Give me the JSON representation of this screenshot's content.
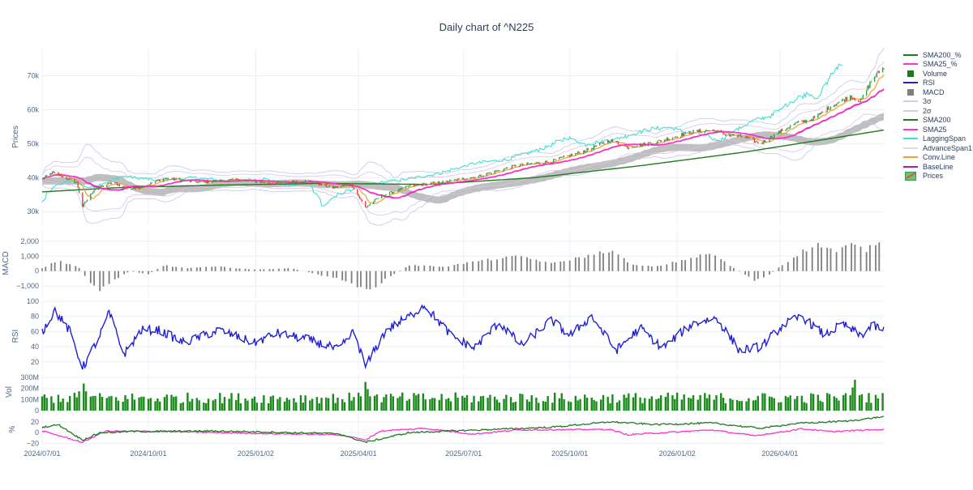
{
  "title": "Daily chart of ^N225",
  "legend": [
    {
      "label": "SMA200_%",
      "color": "#1e7b1e",
      "kind": "line"
    },
    {
      "label": "SMA25_%",
      "color": "#ff33cc",
      "kind": "line"
    },
    {
      "label": "Volume",
      "color": "#1a7d1a",
      "kind": "box"
    },
    {
      "label": "RSI",
      "color": "#1f1fd6",
      "kind": "line"
    },
    {
      "label": "MACD",
      "color": "#7f7f7f",
      "kind": "box"
    },
    {
      "label": "3σ",
      "color": "#c8d2ee",
      "kind": "line"
    },
    {
      "label": "2σ",
      "color": "#c8d2ee",
      "kind": "line"
    },
    {
      "label": "SMA200",
      "color": "#1e7b1e",
      "kind": "line"
    },
    {
      "label": "SMA25",
      "color": "#ff33cc",
      "kind": "line"
    },
    {
      "label": "LaggingSpan",
      "color": "#40e0d0",
      "kind": "line"
    },
    {
      "label": "AdvanceSpan1",
      "color": "#dddddd",
      "kind": "line"
    },
    {
      "label": "Conv.Line",
      "color": "#f0a030",
      "kind": "line"
    },
    {
      "label": "BaseLine",
      "color": "#a020c0",
      "kind": "line"
    },
    {
      "label": "Prices",
      "color": "#e05050",
      "kind": "candle"
    }
  ],
  "chart_data": {
    "type": "line",
    "title": "Daily chart of ^N225",
    "x_ticks": [
      "2024/07/01",
      "2024/10/01",
      "2025/01/02",
      "2025/04/01",
      "2025/07/01",
      "2025/10/01",
      "2026/01/02",
      "2026/04/01"
    ],
    "x_tick_dates": [
      "2024-07-01",
      "2024-10-01",
      "2025-01-02",
      "2025-04-01",
      "2025-07-01",
      "2025-10-01",
      "2026-01-02",
      "2026-04-01"
    ],
    "x_range": [
      "2024-07-01",
      "2026-06-30"
    ],
    "panels": [
      {
        "name": "prices",
        "ylabel": "Prices",
        "ylim": [
          26000,
          78000
        ],
        "ytick_values": [
          30000,
          40000,
          50000,
          60000,
          70000
        ],
        "ytick_labels": [
          "30k",
          "40k",
          "50k",
          "60k",
          "70k"
        ],
        "close_anchors": [
          [
            "2024-07-01",
            39600
          ],
          [
            "2024-07-10",
            41500
          ],
          [
            "2024-07-20",
            40000
          ],
          [
            "2024-07-31",
            38600
          ],
          [
            "2024-08-05",
            31500
          ],
          [
            "2024-08-15",
            36500
          ],
          [
            "2024-08-31",
            38600
          ],
          [
            "2024-09-15",
            36500
          ],
          [
            "2024-10-01",
            38000
          ],
          [
            "2024-10-15",
            39800
          ],
          [
            "2024-11-15",
            38600
          ],
          [
            "2024-12-15",
            39400
          ],
          [
            "2025-01-15",
            38400
          ],
          [
            "2025-02-15",
            39100
          ],
          [
            "2025-03-10",
            37000
          ],
          [
            "2025-03-26",
            38000
          ],
          [
            "2025-04-07",
            31200
          ],
          [
            "2025-04-20",
            34500
          ],
          [
            "2025-05-15",
            37500
          ],
          [
            "2025-06-15",
            38800
          ],
          [
            "2025-07-15",
            40500
          ],
          [
            "2025-08-15",
            43500
          ],
          [
            "2025-09-15",
            44800
          ],
          [
            "2025-10-15",
            48000
          ],
          [
            "2025-11-05",
            51000
          ],
          [
            "2025-11-20",
            49000
          ],
          [
            "2025-12-15",
            50500
          ],
          [
            "2026-01-15",
            53500
          ],
          [
            "2026-02-01",
            54000
          ],
          [
            "2026-02-15",
            52500
          ],
          [
            "2026-03-01",
            52000
          ],
          [
            "2026-03-15",
            50000
          ],
          [
            "2026-04-01",
            53500
          ],
          [
            "2026-04-15",
            56000
          ],
          [
            "2026-05-01",
            57500
          ],
          [
            "2026-05-15",
            61000
          ],
          [
            "2026-06-01",
            64000
          ],
          [
            "2026-06-10",
            62500
          ],
          [
            "2026-06-20",
            69000
          ],
          [
            "2026-06-27",
            71500
          ],
          [
            "2026-06-30",
            72500
          ]
        ],
        "sma200_anchors": [
          [
            "2024-07-01",
            35800
          ],
          [
            "2024-09-01",
            37000
          ],
          [
            "2024-12-01",
            37800
          ],
          [
            "2025-03-01",
            38300
          ],
          [
            "2025-06-01",
            38000
          ],
          [
            "2025-09-01",
            40000
          ],
          [
            "2025-12-01",
            43500
          ],
          [
            "2026-03-01",
            47500
          ],
          [
            "2026-06-30",
            54000
          ]
        ],
        "series": [
          {
            "name": "Prices"
          },
          {
            "name": "SMA25"
          },
          {
            "name": "SMA200"
          },
          {
            "name": "LaggingSpan"
          },
          {
            "name": "Conv.Line"
          },
          {
            "name": "BaseLine"
          },
          {
            "name": "AdvanceSpan1"
          },
          {
            "name": "2σ"
          },
          {
            "name": "3σ"
          }
        ]
      },
      {
        "name": "macd",
        "ylabel": "MACD",
        "ylim": [
          -1800,
          2800
        ],
        "ytick_values": [
          -1000,
          0,
          1000,
          2000
        ],
        "ytick_labels": [
          "−1,000",
          "0",
          "1,000",
          "2,000"
        ],
        "anchors": [
          [
            "2024-07-01",
            200
          ],
          [
            "2024-07-15",
            700
          ],
          [
            "2024-08-01",
            300
          ],
          [
            "2024-08-10",
            -600
          ],
          [
            "2024-08-20",
            -1300
          ],
          [
            "2024-09-01",
            -600
          ],
          [
            "2024-09-15",
            0
          ],
          [
            "2024-10-01",
            -200
          ],
          [
            "2024-10-15",
            400
          ],
          [
            "2024-11-01",
            200
          ],
          [
            "2024-12-01",
            300
          ],
          [
            "2025-01-01",
            100
          ],
          [
            "2025-02-01",
            200
          ],
          [
            "2025-03-01",
            -300
          ],
          [
            "2025-03-20",
            -600
          ],
          [
            "2025-04-10",
            -1400
          ],
          [
            "2025-04-25",
            -500
          ],
          [
            "2025-05-15",
            400
          ],
          [
            "2025-06-15",
            300
          ],
          [
            "2025-07-15",
            700
          ],
          [
            "2025-08-20",
            1000
          ],
          [
            "2025-09-15",
            500
          ],
          [
            "2025-10-15",
            1000
          ],
          [
            "2025-11-05",
            1400
          ],
          [
            "2025-11-25",
            400
          ],
          [
            "2025-12-15",
            300
          ],
          [
            "2026-01-15",
            900
          ],
          [
            "2026-02-01",
            1200
          ],
          [
            "2026-02-20",
            200
          ],
          [
            "2026-03-10",
            -600
          ],
          [
            "2026-03-20",
            -400
          ],
          [
            "2026-04-01",
            300
          ],
          [
            "2026-04-20",
            1300
          ],
          [
            "2026-05-05",
            1800
          ],
          [
            "2026-05-20",
            1300
          ],
          [
            "2026-06-01",
            1800
          ],
          [
            "2026-06-15",
            1400
          ],
          [
            "2026-06-30",
            2300
          ]
        ]
      },
      {
        "name": "rsi",
        "ylabel": "RSI",
        "ylim": [
          8,
          100
        ],
        "ytick_values": [
          20,
          40,
          60,
          80,
          100
        ],
        "ytick_labels": [
          "20",
          "40",
          "60",
          "80",
          "100"
        ],
        "anchors": [
          [
            "2024-07-01",
            60
          ],
          [
            "2024-07-12",
            88
          ],
          [
            "2024-07-25",
            60
          ],
          [
            "2024-08-05",
            12
          ],
          [
            "2024-08-20",
            55
          ],
          [
            "2024-08-28",
            85
          ],
          [
            "2024-09-10",
            30
          ],
          [
            "2024-09-25",
            62
          ],
          [
            "2024-10-10",
            62
          ],
          [
            "2024-11-01",
            45
          ],
          [
            "2024-12-01",
            62
          ],
          [
            "2025-01-01",
            45
          ],
          [
            "2025-01-20",
            58
          ],
          [
            "2025-02-15",
            50
          ],
          [
            "2025-03-15",
            36
          ],
          [
            "2025-03-28",
            60
          ],
          [
            "2025-04-07",
            14
          ],
          [
            "2025-04-25",
            62
          ],
          [
            "2025-05-15",
            80
          ],
          [
            "2025-05-28",
            95
          ],
          [
            "2025-06-20",
            55
          ],
          [
            "2025-07-10",
            38
          ],
          [
            "2025-08-01",
            72
          ],
          [
            "2025-08-20",
            42
          ],
          [
            "2025-09-15",
            75
          ],
          [
            "2025-10-01",
            55
          ],
          [
            "2025-10-20",
            80
          ],
          [
            "2025-11-10",
            35
          ],
          [
            "2025-12-01",
            65
          ],
          [
            "2025-12-20",
            38
          ],
          [
            "2026-01-15",
            70
          ],
          [
            "2026-02-05",
            78
          ],
          [
            "2026-02-25",
            35
          ],
          [
            "2026-03-15",
            40
          ],
          [
            "2026-04-05",
            70
          ],
          [
            "2026-04-20",
            80
          ],
          [
            "2026-05-10",
            55
          ],
          [
            "2026-05-25",
            70
          ],
          [
            "2026-06-10",
            55
          ],
          [
            "2026-06-20",
            68
          ],
          [
            "2026-06-30",
            62
          ]
        ]
      },
      {
        "name": "volume",
        "ylabel": "Vol",
        "ylim": [
          0,
          330000000
        ],
        "ytick_values": [
          0,
          100000000,
          200000000,
          300000000
        ],
        "ytick_labels": [
          "0",
          "100M",
          "200M",
          "300M"
        ],
        "typical": 110000000,
        "spikes": [
          [
            "2024-08-05",
            280000000
          ],
          [
            "2025-04-07",
            260000000
          ],
          [
            "2026-06-05",
            280000000
          ]
        ]
      },
      {
        "name": "pct",
        "ylabel": "%",
        "ylim": [
          -24,
          35
        ],
        "ytick_values": [
          -20,
          0,
          20
        ],
        "ytick_labels": [
          "−20",
          "0",
          "20"
        ],
        "sma200_pct_anchors": [
          [
            "2024-07-01",
            10
          ],
          [
            "2024-07-15",
            15
          ],
          [
            "2024-08-05",
            -14
          ],
          [
            "2024-08-20",
            0
          ],
          [
            "2024-09-15",
            2
          ],
          [
            "2024-12-01",
            3
          ],
          [
            "2025-03-15",
            -2
          ],
          [
            "2025-04-07",
            -18
          ],
          [
            "2025-05-15",
            0
          ],
          [
            "2025-07-15",
            5
          ],
          [
            "2025-09-15",
            10
          ],
          [
            "2025-11-05",
            20
          ],
          [
            "2025-12-15",
            15
          ],
          [
            "2026-02-01",
            18
          ],
          [
            "2026-03-15",
            8
          ],
          [
            "2026-04-15",
            17
          ],
          [
            "2026-06-01",
            22
          ],
          [
            "2026-06-30",
            30
          ]
        ],
        "sma25_pct_anchors": [
          [
            "2024-07-01",
            3
          ],
          [
            "2024-08-05",
            -18
          ],
          [
            "2024-08-25",
            3
          ],
          [
            "2024-10-15",
            2
          ],
          [
            "2025-01-15",
            -2
          ],
          [
            "2025-03-15",
            -4
          ],
          [
            "2025-04-07",
            -14
          ],
          [
            "2025-04-20",
            3
          ],
          [
            "2025-05-28",
            8
          ],
          [
            "2025-07-10",
            -3
          ],
          [
            "2025-08-15",
            5
          ],
          [
            "2025-11-05",
            6
          ],
          [
            "2025-11-20",
            -4
          ],
          [
            "2026-02-01",
            5
          ],
          [
            "2026-03-10",
            -6
          ],
          [
            "2026-04-20",
            7
          ],
          [
            "2026-05-15",
            2
          ],
          [
            "2026-06-30",
            6
          ]
        ]
      }
    ]
  }
}
